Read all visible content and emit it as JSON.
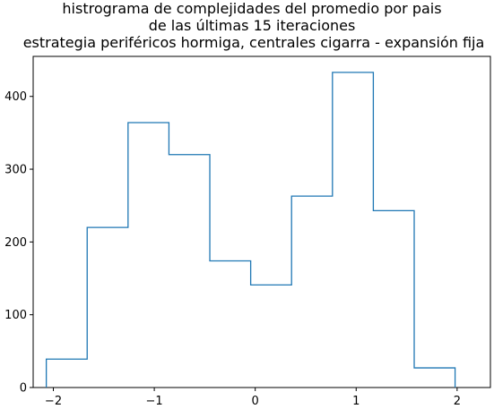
{
  "chart_data": {
    "type": "histogram",
    "title_lines": [
      "histrograma de complejidades del promedio por pais",
      "de las últimas 15 iteraciones",
      "estrategia periféricos hormiga, centrales cigarra - expansión fija"
    ],
    "xlabel": "",
    "ylabel": "",
    "bin_edges": [
      -2.07,
      -1.665,
      -1.26,
      -0.855,
      -0.45,
      -0.045,
      0.36,
      0.765,
      1.17,
      1.575,
      1.98
    ],
    "counts": [
      39,
      220,
      364,
      320,
      174,
      141,
      263,
      433,
      243,
      27
    ],
    "xlim": [
      -2.2,
      2.33
    ],
    "ylim": [
      0,
      455
    ],
    "xticks": [
      -2,
      -1,
      0,
      1,
      2
    ],
    "xtick_labels": [
      "−2",
      "−1",
      "0",
      "1",
      "2"
    ],
    "yticks": [
      0,
      100,
      200,
      300,
      400
    ],
    "ytick_labels": [
      "0",
      "100",
      "200",
      "300",
      "400"
    ],
    "histtype": "step",
    "line_color": "#1f77b4",
    "grid": false
  }
}
